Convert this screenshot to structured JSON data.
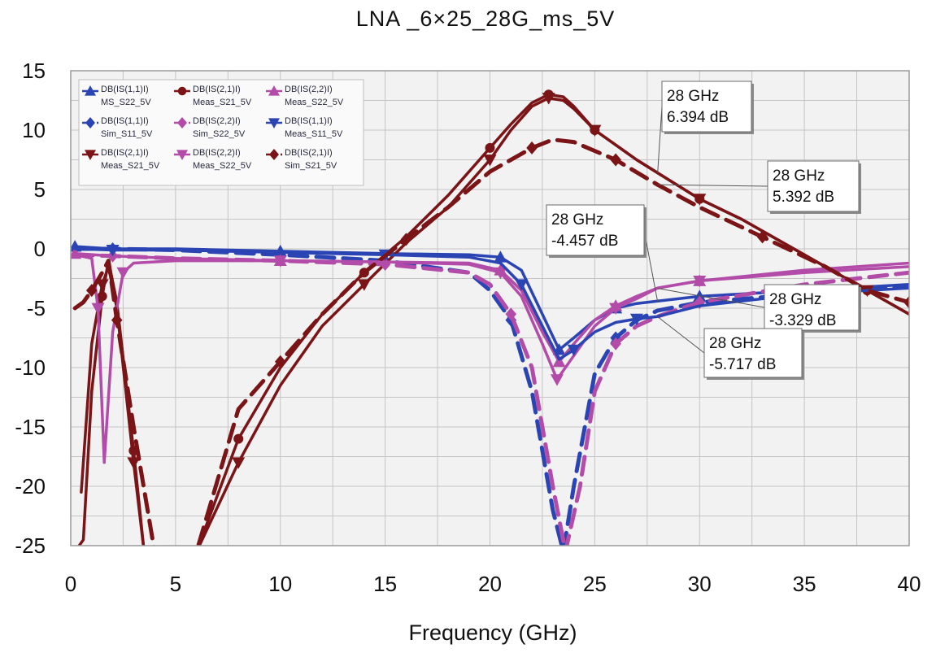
{
  "chart_data": {
    "type": "line",
    "title": "LNA _6×25_28G_ms_5V",
    "xlabel": "Frequency (GHz)",
    "ylabel": "",
    "xlim": [
      0,
      40
    ],
    "ylim": [
      -25,
      15
    ],
    "xticks": [
      0,
      5,
      10,
      15,
      20,
      25,
      30,
      35,
      40
    ],
    "yticks": [
      15,
      10,
      5,
      0,
      -5,
      -10,
      -15,
      -20,
      -25
    ],
    "grid": true,
    "legend_position": "top-left",
    "colors": {
      "blue": "#2a44b4",
      "maroon": "#7a1416",
      "magenta": "#b24ca8",
      "grid": "#c4c4c4",
      "plot_bg": "#f2f2f2"
    },
    "series": [
      {
        "name": "MS_S22_5V",
        "legend_line1": "DB(IS(1,1)I)",
        "legend_line2": "MS_S22_5V",
        "color": "#2a44b4",
        "dash": "solid",
        "marker": "triangle-up",
        "x": [
          0.2,
          2,
          5,
          10,
          15,
          19,
          20.5,
          21.5,
          22.5,
          23.3,
          24,
          25,
          26,
          27,
          28,
          30,
          35,
          40
        ],
        "y": [
          0.2,
          0,
          0,
          -0.2,
          -0.4,
          -0.5,
          -0.7,
          -1.8,
          -5.5,
          -8.5,
          -7.5,
          -6.0,
          -5.0,
          -4.6,
          -4.4,
          -4.0,
          -3.5,
          -3.0
        ]
      },
      {
        "name": "Sim_S11_5V",
        "legend_line1": "DB(IS(1,1)I)",
        "legend_line2": "Sim_S11_5V",
        "color": "#2a44b4",
        "dash": "dashed",
        "marker": "diamond",
        "x": [
          0.2,
          2,
          5,
          10,
          15,
          19,
          20,
          21,
          22,
          23,
          23.5,
          24,
          25,
          26,
          27,
          28,
          30,
          35,
          40
        ],
        "y": [
          0,
          0,
          -0.1,
          -0.5,
          -1.0,
          -2.0,
          -3.5,
          -6.0,
          -12.0,
          -22.0,
          -25.5,
          -20.0,
          -10.5,
          -7.5,
          -6.0,
          -5.2,
          -4.5,
          -3.8,
          -3.2
        ]
      },
      {
        "name": "Meas_S21_5V",
        "legend_line1": "DB(IS(2,1)I)",
        "legend_line2": "Meas_S21_5V",
        "color": "#7a1416",
        "dash": "solid",
        "marker": "triangle-down",
        "x": [
          0.5,
          1.0,
          1.5,
          1.8,
          2.2,
          3.0,
          3.5,
          6.0,
          8.0,
          10.0,
          12.0,
          14.0,
          16.0,
          18.0,
          20.0,
          21.0,
          22.0,
          22.8,
          23.5,
          24.0,
          25.0,
          27.0,
          28.0,
          30.0,
          32.0,
          35.0,
          38.0,
          40.0
        ],
        "y": [
          -20.5,
          -8.0,
          -3.0,
          -1.5,
          -5.0,
          -18.0,
          -25.5,
          -25.5,
          -18.0,
          -11.5,
          -6.5,
          -3.0,
          0.5,
          3.5,
          7.5,
          10.0,
          12.0,
          12.7,
          12.5,
          11.8,
          10.0,
          7.5,
          6.4,
          4.2,
          2.5,
          -0.5,
          -3.5,
          -5.5
        ]
      },
      {
        "name": "Meas_S21_5V",
        "legend_line1": "DB(IS(2,1)I)",
        "legend_line2": "Meas_S21_5V",
        "color": "#7a1416",
        "dash": "solid",
        "marker": "circle",
        "x": [
          0.2,
          0.6,
          1.0,
          1.5,
          1.8,
          2.2,
          3.0,
          3.5,
          6.0,
          8.0,
          10.0,
          12.0,
          14.0,
          16.0,
          18.0,
          20.0,
          21.0,
          22.0,
          22.8,
          23.5,
          24.0,
          25.0,
          27.0,
          28.0,
          30.0,
          32.0,
          35.0,
          38.0,
          40.0
        ],
        "y": [
          -25.5,
          -24.5,
          -12.0,
          -4.0,
          -1.0,
          -4.5,
          -17.0,
          -25.5,
          -25.5,
          -16.0,
          -10.0,
          -5.5,
          -2.0,
          1.0,
          4.5,
          8.5,
          10.5,
          12.3,
          13.0,
          12.8,
          12.0,
          10.0,
          7.5,
          6.4,
          4.2,
          2.5,
          -0.5,
          -3.5,
          -5.5
        ]
      },
      {
        "name": "Sim_S22_5V",
        "legend_line1": "DB(IS(2,2)I)",
        "legend_line2": "Sim_S22_5V",
        "color": "#b24ca8",
        "dash": "dashed",
        "marker": "diamond",
        "x": [
          0.2,
          2,
          5,
          10,
          15,
          19,
          20,
          21,
          22,
          23,
          23.6,
          24.3,
          25,
          26,
          27,
          28,
          30,
          35,
          40
        ],
        "y": [
          -0.5,
          -0.6,
          -0.8,
          -1.0,
          -1.3,
          -2.0,
          -3.0,
          -5.5,
          -10.0,
          -20.0,
          -25.5,
          -20.0,
          -12.0,
          -8.0,
          -6.5,
          -5.7,
          -4.5,
          -3.0,
          -2.0
        ]
      },
      {
        "name": "Meas_S22_5V",
        "legend_line1": "DB(IS(2,2)I)",
        "legend_line2": "Meas_S22_5V",
        "color": "#b24ca8",
        "dash": "solid",
        "marker": "triangle-down",
        "x": [
          0.2,
          1.0,
          1.3,
          1.6,
          2.0,
          2.5,
          3.0,
          5.0,
          10.0,
          15.0,
          19.0,
          20.5,
          21.5,
          22.5,
          23.2,
          24.0,
          25.0,
          26.0,
          27.0,
          28.0,
          30.0,
          35.0,
          40.0
        ],
        "y": [
          -0.5,
          -0.8,
          -5.0,
          -18.0,
          -7.0,
          -2.0,
          -1.2,
          -1.0,
          -1.0,
          -1.1,
          -1.3,
          -2.0,
          -4.0,
          -8.0,
          -11.0,
          -9.0,
          -6.5,
          -5.0,
          -4.2,
          -3.3,
          -2.7,
          -2.0,
          -1.5
        ]
      },
      {
        "name": "Meas_S22_5V",
        "legend_line1": "DB(IS(2,2)I)",
        "legend_line2": "Meas_S22_5V",
        "color": "#b24ca8",
        "dash": "solid",
        "marker": "triangle-up",
        "x": [
          0.2,
          2,
          5,
          10,
          15,
          19,
          20.5,
          21.5,
          22.5,
          23.3,
          24.0,
          25.0,
          26.0,
          27.0,
          28.0,
          30.0,
          35.0,
          40.0
        ],
        "y": [
          -0.4,
          -0.6,
          -0.8,
          -1.0,
          -1.1,
          -1.2,
          -1.8,
          -3.5,
          -7.0,
          -9.5,
          -8.0,
          -6.0,
          -4.8,
          -4.0,
          -3.3,
          -2.7,
          -1.8,
          -1.2
        ]
      },
      {
        "name": "Meas_S11_5V",
        "legend_line1": "DB(IS(1,1)I)",
        "legend_line2": "Meas_S11_5V",
        "color": "#2a44b4",
        "dash": "solid",
        "marker": "triangle-down",
        "x": [
          0.2,
          2,
          5,
          10,
          15,
          19,
          20.5,
          21.5,
          22.5,
          23.3,
          24.0,
          25.0,
          26.0,
          27.0,
          28.0,
          30.0,
          35.0,
          40.0
        ],
        "y": [
          0.0,
          -0.1,
          -0.1,
          -0.3,
          -0.5,
          -0.7,
          -1.2,
          -3.0,
          -6.5,
          -9.3,
          -8.5,
          -7.0,
          -6.2,
          -5.9,
          -5.7,
          -4.8,
          -3.8,
          -3.3
        ]
      },
      {
        "name": "Sim_S21_5V",
        "legend_line1": "DB(IS(2,1)I)",
        "legend_line2": "Sim_S21_5V",
        "color": "#7a1416",
        "dash": "dashed",
        "marker": "diamond",
        "x": [
          0.2,
          0.6,
          1.0,
          1.5,
          1.8,
          2.2,
          3.0,
          4.0,
          4.5,
          6.0,
          8.0,
          10.0,
          12.0,
          14.0,
          16.0,
          18.0,
          20.0,
          22.0,
          23.0,
          24.0,
          26.0,
          28.0,
          30.0,
          33.0,
          36.0,
          38.0,
          40.0
        ],
        "y": [
          -5.0,
          -4.5,
          -3.5,
          -2.0,
          -1.0,
          -6.0,
          -15.0,
          -25.5,
          -25.5,
          -25.5,
          -13.5,
          -9.5,
          -5.5,
          -2.0,
          0.8,
          3.5,
          6.5,
          8.5,
          9.2,
          9.0,
          7.5,
          5.4,
          3.5,
          1.0,
          -1.5,
          -3.5,
          -4.5
        ]
      }
    ],
    "annotations": [
      {
        "freq": "28 GHz",
        "value": "6.394 dB",
        "point": [
          28,
          6.4
        ]
      },
      {
        "freq": "28 GHz",
        "value": "5.392 dB",
        "point": [
          28,
          5.4
        ]
      },
      {
        "freq": "28 GHz",
        "value": "-4.457 dB",
        "point": [
          28,
          -4.46
        ]
      },
      {
        "freq": "28 GHz",
        "value": "-3.329 dB",
        "point": [
          28,
          -3.33
        ]
      },
      {
        "freq": "28 GHz",
        "value": "-5.717 dB",
        "point": [
          28,
          -5.72
        ]
      }
    ]
  }
}
